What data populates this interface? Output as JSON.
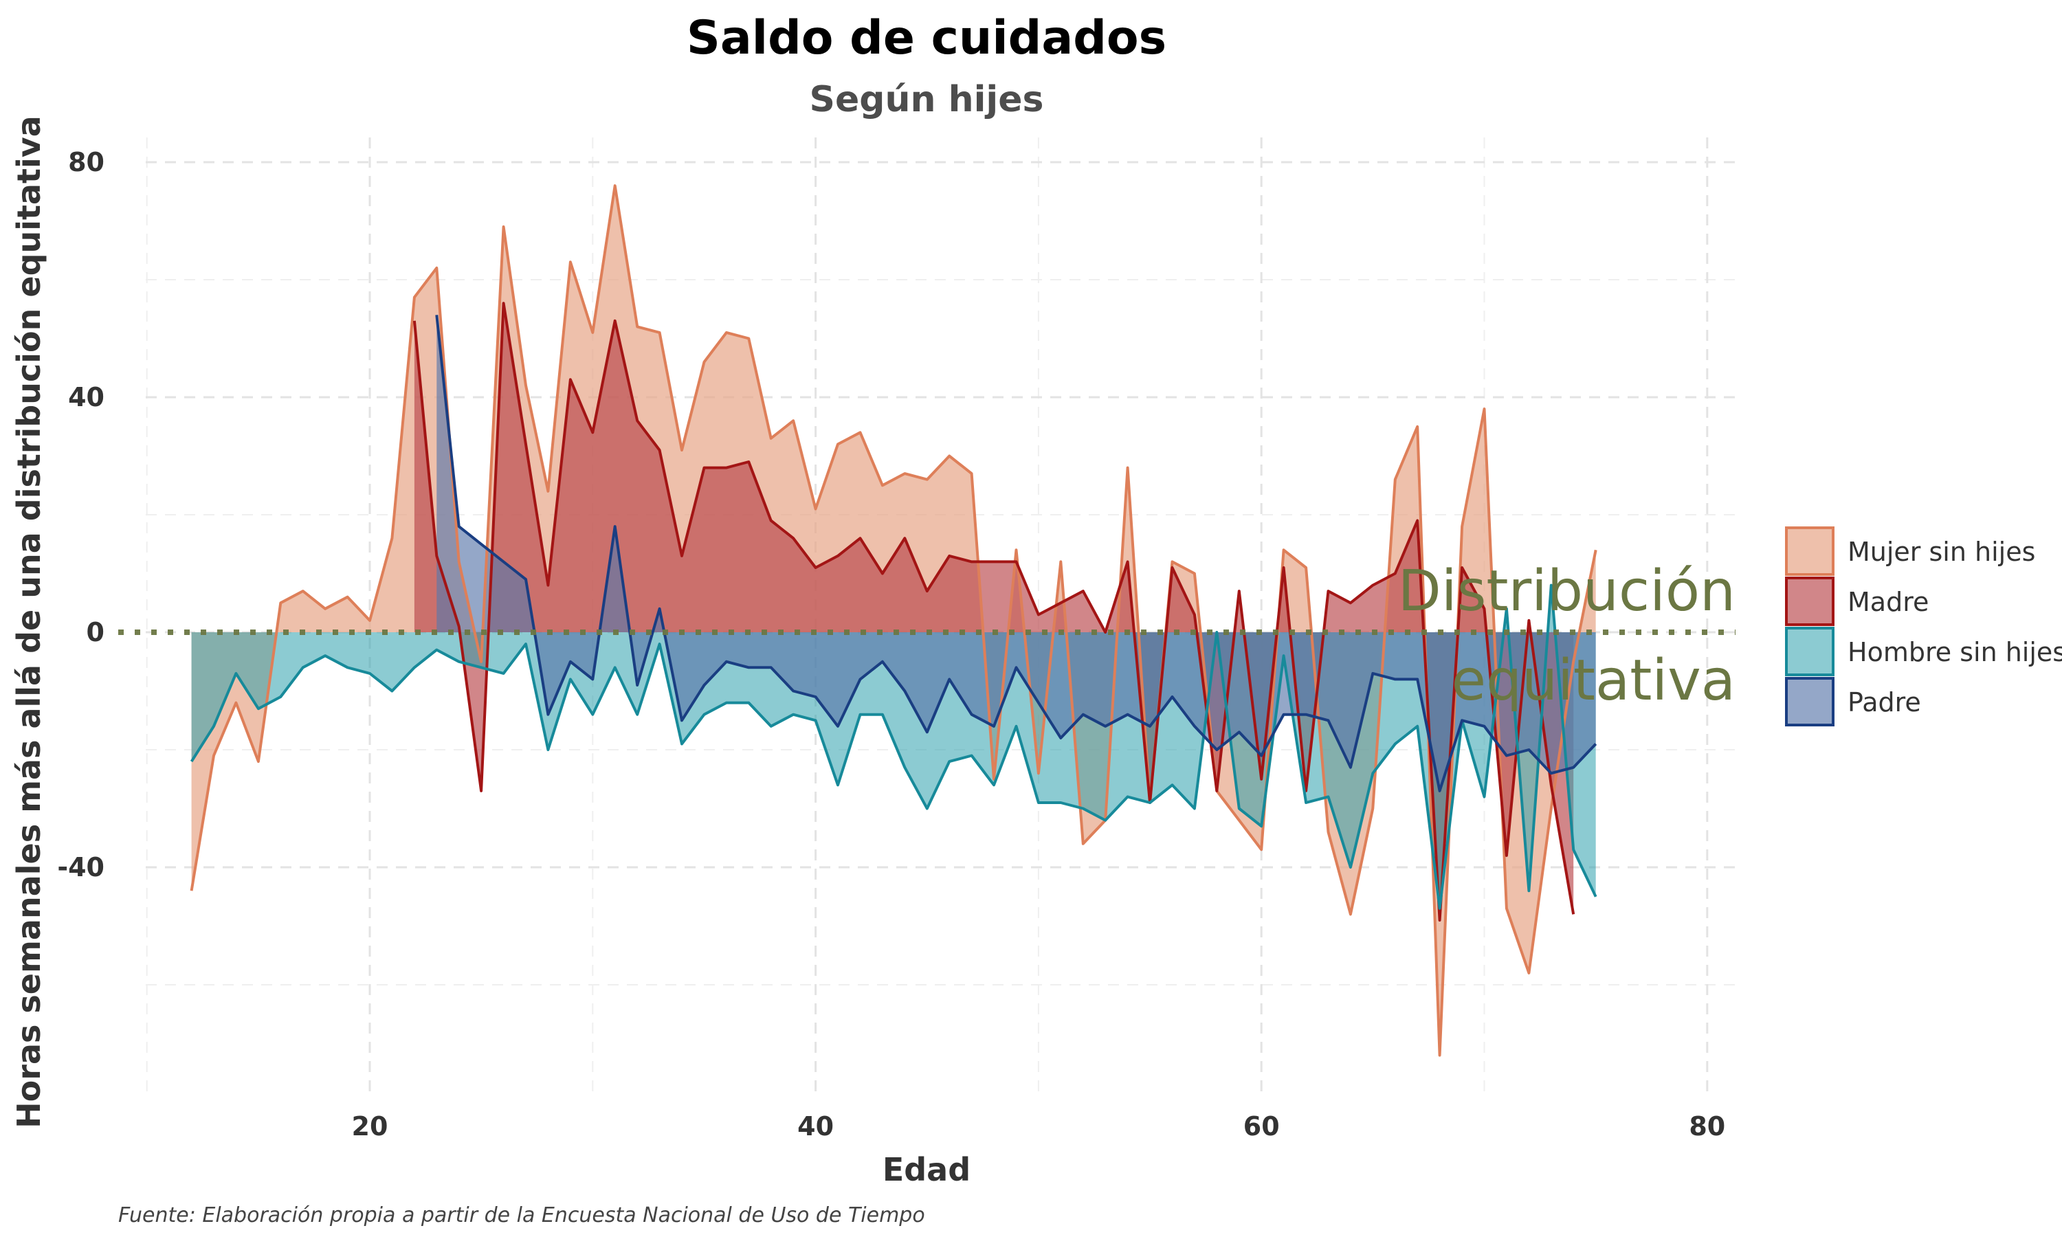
{
  "colors": {
    "mujer_fill": "#e7a588",
    "mujer_line": "#de7f59",
    "madre_fill": "#b8454a",
    "madre_line": "#a31515",
    "hombre_fill": "#2da0ad",
    "hombre_line": "#178a9a",
    "padre_fill": "#5a78aa",
    "padre_line": "#1a3e82",
    "reference": "#6b7743"
  },
  "caption": "Fuente: Elaboración propia a partir de la Encuesta Nacional de Uso de Tiempo",
  "chart_data": {
    "type": "area",
    "title": "Saldo de cuidados",
    "subtitle": "Según hijes",
    "xlabel": "Edad",
    "ylabel": "Horas semanales más allá de una distribución equitativa",
    "xlim": [
      10,
      81
    ],
    "ylim": [
      -77,
      85
    ],
    "xticks": [
      20,
      40,
      60,
      80
    ],
    "yticks": [
      80,
      40,
      0,
      -40
    ],
    "grid": true,
    "legend_position": "right",
    "reference_line": {
      "y": 0,
      "label_line1": "Distribución",
      "label_line2": "equitativa"
    },
    "series": [
      {
        "name": "Mujer sin hijes",
        "x": [
          12,
          13,
          14,
          15,
          16,
          17,
          18,
          19,
          20,
          21,
          22,
          23,
          24,
          25,
          26,
          27,
          28,
          29,
          30,
          31,
          32,
          33,
          34,
          35,
          36,
          37,
          38,
          39,
          40,
          41,
          42,
          43,
          44,
          45,
          46,
          47,
          48,
          49,
          50,
          51,
          52,
          53,
          54,
          55,
          56,
          57,
          58,
          59,
          60,
          61,
          62,
          63,
          64,
          65,
          66,
          67,
          68,
          69,
          70,
          71,
          72,
          73,
          74,
          75
        ],
        "y": [
          -44,
          -21,
          -12,
          -22,
          5,
          7,
          4,
          6,
          2,
          16,
          57,
          62,
          12,
          -5,
          69,
          42,
          24,
          63,
          51,
          76,
          52,
          51,
          31,
          46,
          51,
          50,
          33,
          36,
          21,
          32,
          34,
          25,
          27,
          26,
          30,
          27,
          -25,
          14,
          -24,
          12,
          -36,
          -32,
          28,
          -29,
          12,
          10,
          -27,
          -32,
          -37,
          14,
          11,
          -34,
          -48,
          -30,
          26,
          35,
          -72,
          18,
          38,
          -47,
          -58,
          -30,
          -5,
          14
        ]
      },
      {
        "name": "Madre",
        "x": [
          22,
          23,
          24,
          25,
          26,
          27,
          28,
          29,
          30,
          31,
          32,
          33,
          34,
          35,
          36,
          37,
          38,
          39,
          40,
          41,
          42,
          43,
          44,
          45,
          46,
          47,
          48,
          49,
          50,
          51,
          52,
          53,
          54,
          55,
          56,
          57,
          58,
          59,
          60,
          61,
          62,
          63,
          64,
          65,
          66,
          67,
          68,
          69,
          70,
          71,
          72,
          73,
          74
        ],
        "y": [
          53,
          13,
          1,
          -27,
          56,
          32,
          8,
          43,
          34,
          53,
          36,
          31,
          13,
          28,
          28,
          29,
          19,
          16,
          11,
          13,
          16,
          10,
          16,
          7,
          13,
          12,
          12,
          12,
          3,
          5,
          7,
          0,
          12,
          -29,
          11,
          3,
          -27,
          7,
          -25,
          11,
          -27,
          7,
          5,
          8,
          10,
          19,
          -49,
          11,
          4,
          -38,
          2,
          -26,
          -48
        ]
      },
      {
        "name": "Hombre sin hijes",
        "x": [
          12,
          13,
          14,
          15,
          16,
          17,
          18,
          19,
          20,
          21,
          22,
          23,
          24,
          25,
          26,
          27,
          28,
          29,
          30,
          31,
          32,
          33,
          34,
          35,
          36,
          37,
          38,
          39,
          40,
          41,
          42,
          43,
          44,
          45,
          46,
          47,
          48,
          49,
          50,
          51,
          52,
          53,
          54,
          55,
          56,
          57,
          58,
          59,
          60,
          61,
          62,
          63,
          64,
          65,
          66,
          67,
          68,
          69,
          70,
          71,
          72,
          73,
          74,
          75
        ],
        "y": [
          -22,
          -16,
          -7,
          -13,
          -11,
          -6,
          -4,
          -6,
          -7,
          -10,
          -6,
          -3,
          -5,
          -6,
          -7,
          -2,
          -20,
          -8,
          -14,
          -6,
          -14,
          -2,
          -19,
          -14,
          -12,
          -12,
          -16,
          -14,
          -15,
          -26,
          -14,
          -14,
          -23,
          -30,
          -22,
          -21,
          -26,
          -16,
          -29,
          -29,
          -30,
          -32,
          -28,
          -29,
          -26,
          -30,
          0,
          -30,
          -33,
          -4,
          -29,
          -28,
          -40,
          -24,
          -19,
          -16,
          -47,
          -15,
          -28,
          4,
          -44,
          8,
          -37,
          -45
        ]
      },
      {
        "name": "Padre",
        "x": [
          23,
          24,
          25,
          26,
          27,
          28,
          29,
          30,
          31,
          32,
          33,
          34,
          35,
          36,
          37,
          38,
          39,
          40,
          41,
          42,
          43,
          44,
          45,
          46,
          47,
          48,
          49,
          50,
          51,
          52,
          53,
          54,
          55,
          56,
          57,
          58,
          59,
          60,
          61,
          62,
          63,
          64,
          65,
          66,
          67,
          68,
          69,
          70,
          71,
          72,
          73,
          74,
          75
        ],
        "y": [
          54,
          18,
          15,
          12,
          9,
          -14,
          -5,
          -8,
          18,
          -9,
          4,
          -15,
          -9,
          -5,
          -6,
          -6,
          -10,
          -11,
          -16,
          -8,
          -5,
          -10,
          -17,
          -8,
          -14,
          -16,
          -6,
          -12,
          -18,
          -14,
          -16,
          -14,
          -16,
          -11,
          -16,
          -20,
          -17,
          -21,
          -14,
          -14,
          -15,
          -23,
          -7,
          -8,
          -8,
          -27,
          -15,
          -16,
          -21,
          -20,
          -24,
          -23,
          -19
        ]
      }
    ]
  }
}
